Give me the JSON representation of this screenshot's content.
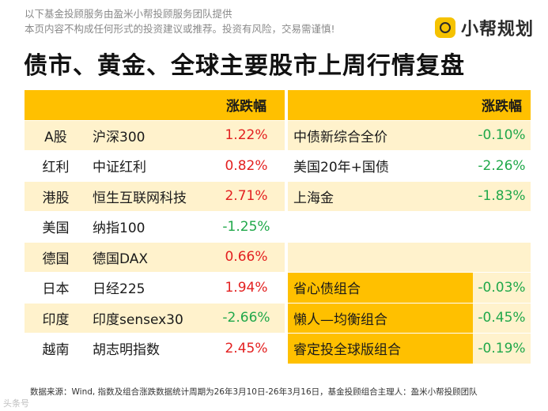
{
  "disclaimer": {
    "line1": "以下基金投顾服务由盈米小帮投顾服务团队提供",
    "line2": "本页内容不构成任何形式的投资建议或推荐。投资有风险，交易需谨慎!"
  },
  "brand": {
    "name": "小帮规划",
    "accent": "#FFC000"
  },
  "title": "债市、黄金、全球主要股市上周行情复盘",
  "header": {
    "chg1": "涨跌幅",
    "chg2": "涨跌幅"
  },
  "rows": [
    {
      "market": "A股",
      "index": "沪深300",
      "chg": "1.22%",
      "name": "中债新综合全价",
      "chg2": "-0.10%"
    },
    {
      "market": "红利",
      "index": "中证红利",
      "chg": "0.82%",
      "name": "美国20年+国债",
      "chg2": "-2.26%"
    },
    {
      "market": "港股",
      "index": "恒生互联网科技",
      "chg": "2.71%",
      "name": "上海金",
      "chg2": "-1.83%"
    },
    {
      "market": "美国",
      "index": "纳指100",
      "chg": "-1.25%",
      "name": "",
      "chg2": ""
    },
    {
      "market": "德国",
      "index": "德国DAX",
      "chg": "0.66%",
      "name": "",
      "chg2": ""
    },
    {
      "market": "日本",
      "index": "日经225",
      "chg": "1.94%",
      "name": "省心债组合",
      "chg2": "-0.03%"
    },
    {
      "market": "印度",
      "index": "印度sensex30",
      "chg": "-2.66%",
      "name": "懒人—均衡组合",
      "chg2": "-0.45%"
    },
    {
      "market": "越南",
      "index": "胡志明指数",
      "chg": "2.45%",
      "name": "睿定投全球版组合",
      "chg2": "-0.19%"
    }
  ],
  "source": "数据来源：Wind, 指数及组合涨跌数据统计周期为26年3月10日-26年3月16日，基金投顾组合主理人：盈米小帮投顾团队",
  "corner_mark": "头条号"
}
